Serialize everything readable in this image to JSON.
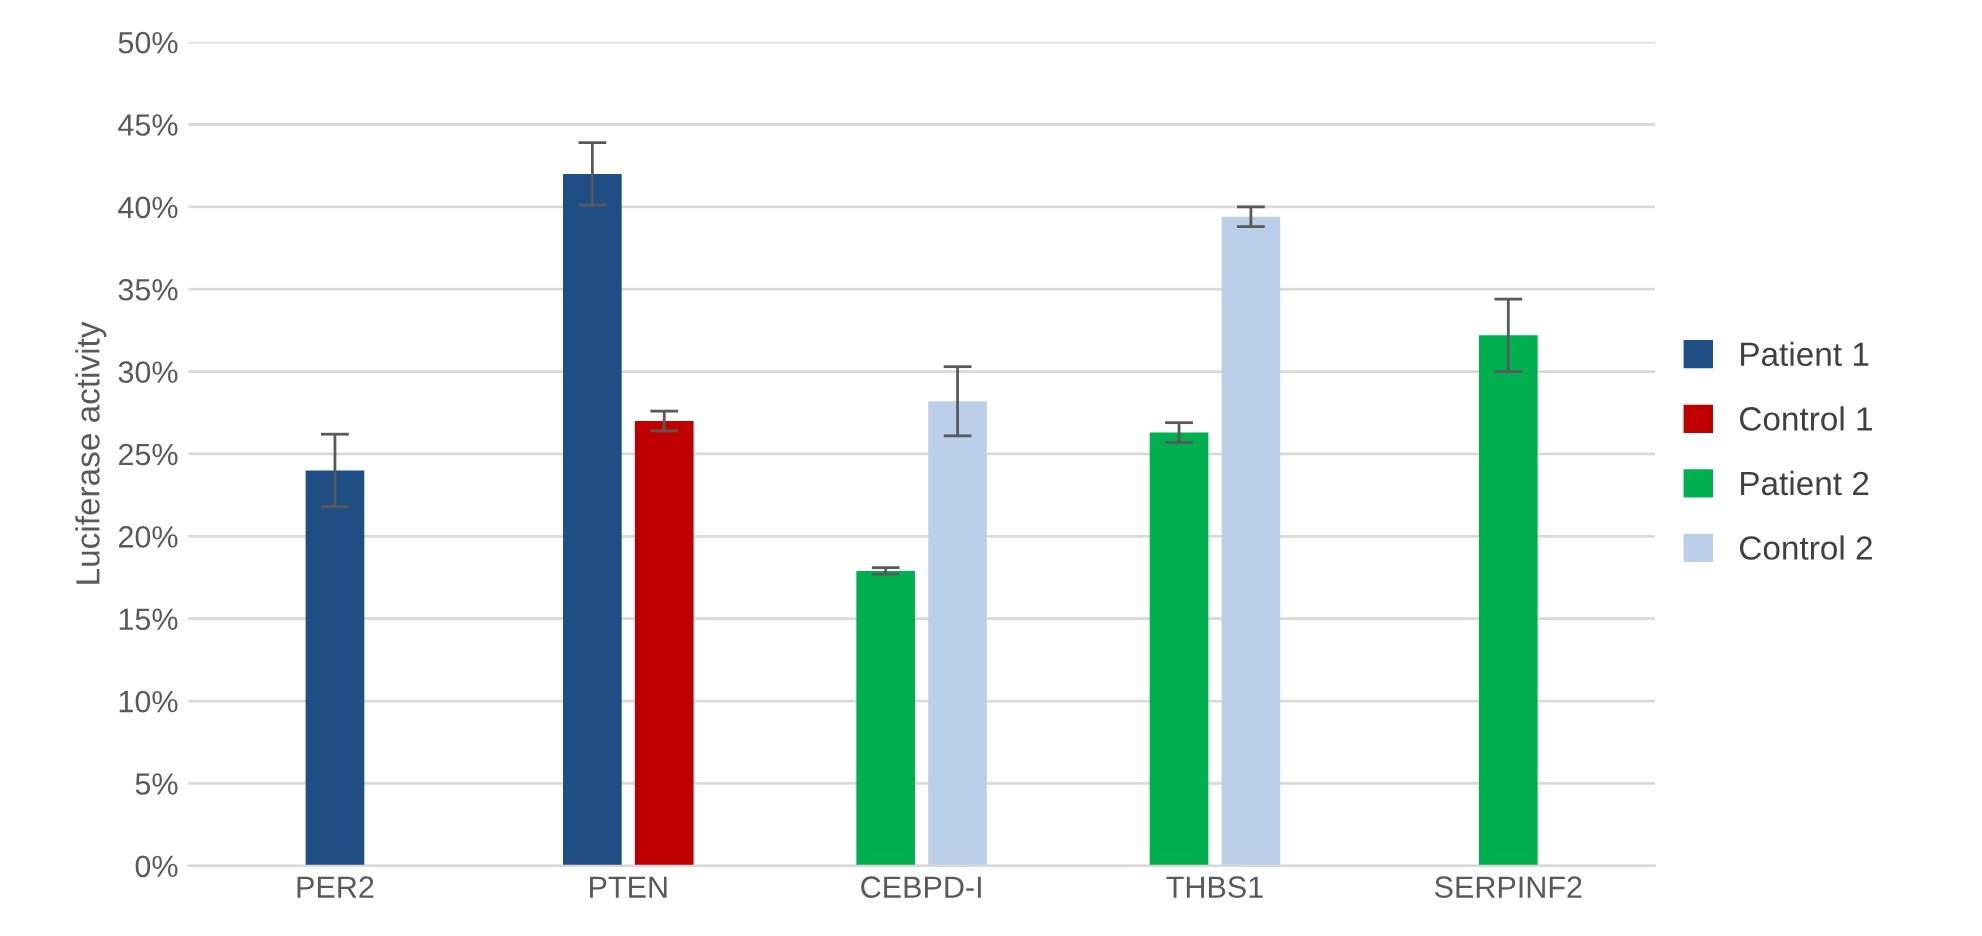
{
  "chart_data": {
    "type": "bar",
    "ylabel": "Luciferase activity",
    "categories": [
      "PER2",
      "PTEN",
      "CEBPD-I",
      "THBS1",
      "SERPINF2"
    ],
    "series": [
      {
        "name": "Patient 1",
        "color": "#1f4e85",
        "values": [
          24.0,
          42.0,
          null,
          null,
          null
        ],
        "errors": [
          2.2,
          1.9,
          null,
          null,
          null
        ]
      },
      {
        "name": "Control 1",
        "color": "#c00000",
        "values": [
          null,
          27.0,
          null,
          null,
          null
        ],
        "errors": [
          null,
          0.6,
          null,
          null,
          null
        ]
      },
      {
        "name": "Patient 2",
        "color": "#00b050",
        "values": [
          null,
          null,
          17.9,
          26.3,
          32.2
        ],
        "errors": [
          null,
          null,
          0.2,
          0.6,
          2.2
        ]
      },
      {
        "name": "Control 2",
        "color": "#bccfea",
        "values": [
          null,
          null,
          28.2,
          39.4,
          null
        ],
        "errors": [
          null,
          null,
          2.1,
          0.6,
          null
        ]
      }
    ],
    "ylim": [
      0,
      50
    ],
    "yticks": [
      {
        "value": 0,
        "label": "0%"
      },
      {
        "value": 5,
        "label": "5%"
      },
      {
        "value": 10,
        "label": "10%"
      },
      {
        "value": 15,
        "label": "15%"
      },
      {
        "value": 20,
        "label": "20%"
      },
      {
        "value": 25,
        "label": "25%"
      },
      {
        "value": 30,
        "label": "30%"
      },
      {
        "value": 35,
        "label": "35%"
      },
      {
        "value": 40,
        "label": "40%"
      },
      {
        "value": 45,
        "label": "45%"
      },
      {
        "value": 50,
        "label": "50%"
      }
    ],
    "grid": "y",
    "legend": "right"
  }
}
